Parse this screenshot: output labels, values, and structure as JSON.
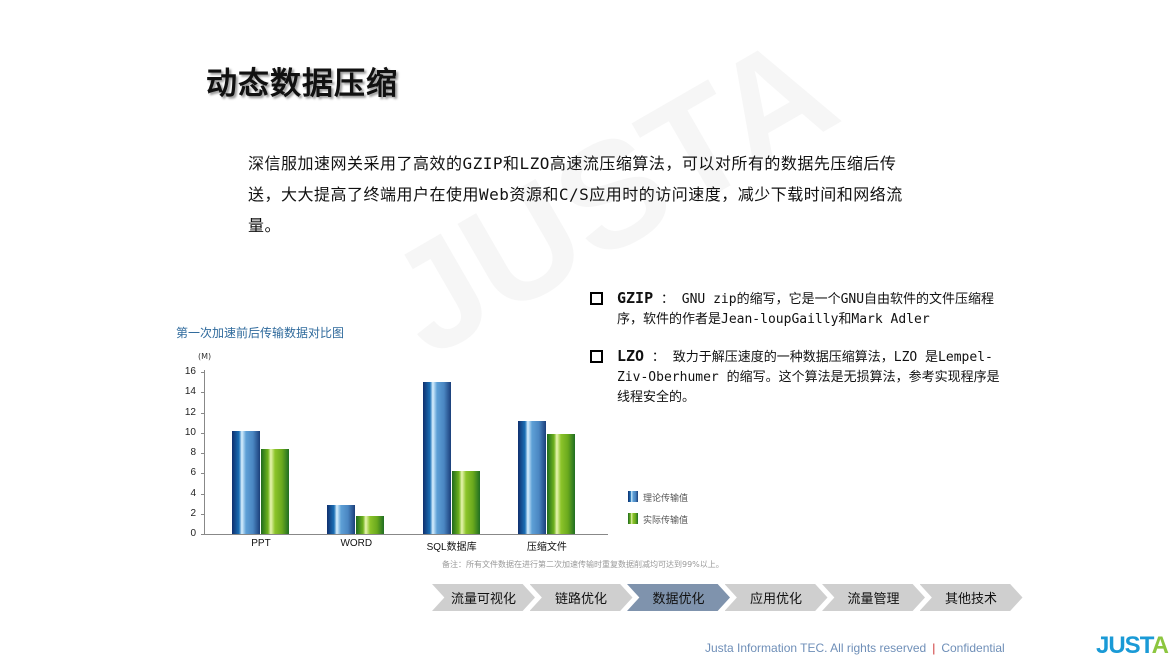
{
  "title": "动态数据压缩",
  "intro": "深信服加速网关采用了高效的GZIP和LZO高速流压缩算法，可以对所有的数据先压缩后传送，大大提高了终端用户在使用Web资源和C/S应用时的访问速度，减少下载时间和网络流量。",
  "watermark": "JUSTA",
  "bullets": [
    {
      "term": "GZIP",
      "sep": " ： ",
      "text": "GNU zip的缩写，它是一个GNU自由软件的文件压缩程序，软件的作者是Jean-loupGailly和Mark Adler"
    },
    {
      "term": "LZO",
      "sep": "  ： ",
      "text": "致力于解压速度的一种数据压缩算法，LZO 是Lempel-Ziv-Oberhumer 的缩写。这个算法是无损算法，参考实现程序是线程安全的。"
    }
  ],
  "chart_data": {
    "type": "bar",
    "title": "第一次加速前后传输数据对比图",
    "unit": "(M)",
    "categories": [
      "PPT",
      "WORD",
      "SQL数据库",
      "压缩文件"
    ],
    "series": [
      {
        "name": "理论传输值",
        "values": [
          10.2,
          2.9,
          15.0,
          11.2
        ],
        "color": "#1a6fb5"
      },
      {
        "name": "实际传输值",
        "values": [
          8.4,
          1.8,
          6.2,
          9.9
        ],
        "color": "#6fb21e"
      }
    ],
    "ylim": [
      0,
      16
    ],
    "yticks": [
      "0",
      "2",
      "4",
      "6",
      "8",
      "10",
      "12",
      "14",
      "16"
    ],
    "legend": "right",
    "note": "备注：所有文件数据在进行第二次加速传输时重复数据削减均可达到99%以上。"
  },
  "nav": {
    "items": [
      "流量可视化",
      "链路优化",
      "数据优化",
      "应用优化",
      "流量管理",
      "其他技术"
    ],
    "active_index": 2,
    "active_color": "#7f93ad"
  },
  "footer": {
    "text": "Justa Information TEC.  All rights reserved",
    "sep": "|",
    "confidential": "Confidential"
  },
  "logo": "JUSTA"
}
